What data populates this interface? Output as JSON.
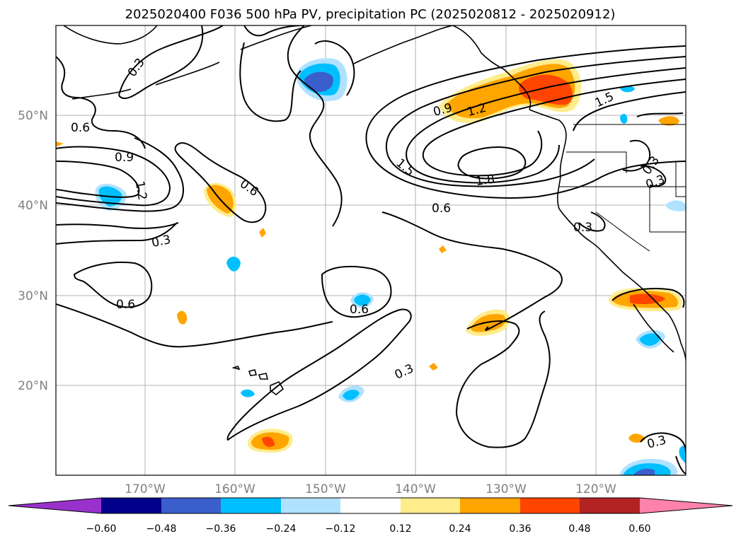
{
  "title": "2025020400 F036 500 hPa PV, precipitation PC (2025020812 - 2025020912)",
  "map": {
    "lat_labels": [
      "50°N",
      "40°N",
      "30°N",
      "20°N"
    ],
    "lon_labels": [
      "170°W",
      "160°W",
      "150°W",
      "140°W",
      "130°W",
      "120°W"
    ],
    "contour_labels": [
      "0.3",
      "0.6",
      "0.9",
      "1.2",
      "0.6",
      "0.3",
      "0.6",
      "0.6",
      "0.9",
      "1.2",
      "1.5",
      "1.8",
      "1.5",
      "0.6",
      "0.3",
      "0.3",
      "0.3",
      "0.3",
      "0.3"
    ]
  },
  "colorbar": {
    "ticks": [
      "−0.60",
      "−0.48",
      "−0.36",
      "−0.24",
      "−0.12",
      "0.12",
      "0.24",
      "0.36",
      "0.48",
      "0.60"
    ],
    "colors": [
      "#9932cc",
      "#00008b",
      "#3a5fcd",
      "#00bfff",
      "#b0e2ff",
      "#ffffff",
      "#ffec8b",
      "#ffa500",
      "#ff4500",
      "#b22222",
      "#ff82ab"
    ],
    "extend": "both"
  }
}
